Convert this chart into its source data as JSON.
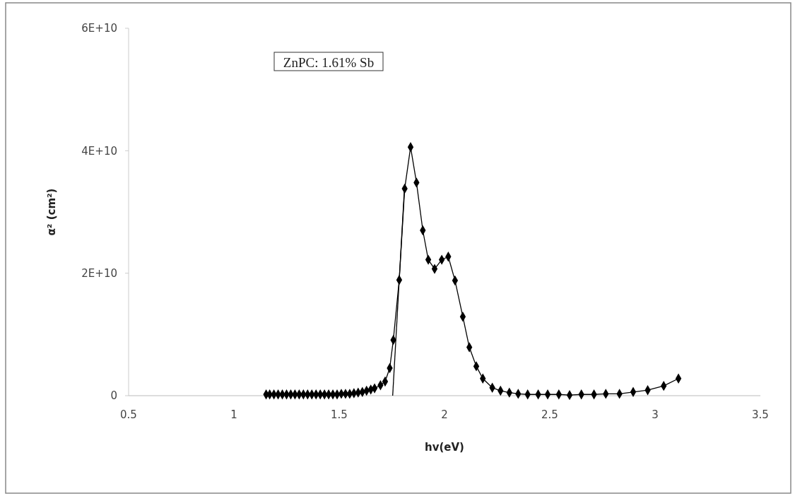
{
  "chart_data": {
    "type": "line",
    "xlabel": "hv(eV)",
    "ylabel": "α² (cm²)",
    "annotations": [
      "ZnPC: 1.61% Sb"
    ],
    "xlim": [
      0.5,
      3.5
    ],
    "xticks": [
      0.5,
      1,
      1.5,
      2,
      2.5,
      3,
      3.5
    ],
    "ylim": [
      0,
      60000000000
    ],
    "yticks": [
      {
        "value": 0,
        "label": "0"
      },
      {
        "value": 20000000000,
        "label": "2E+10"
      },
      {
        "value": 40000000000,
        "label": "4E+10"
      },
      {
        "value": 60000000000,
        "label": "6E+10"
      }
    ],
    "grid": false,
    "marker": "diamond",
    "line_style": "solid",
    "series": [
      {
        "color": "#000000",
        "x": [
          1.153,
          1.17,
          1.19,
          1.21,
          1.23,
          1.25,
          1.27,
          1.29,
          1.31,
          1.33,
          1.35,
          1.37,
          1.39,
          1.41,
          1.43,
          1.45,
          1.47,
          1.49,
          1.51,
          1.53,
          1.55,
          1.57,
          1.59,
          1.61,
          1.63,
          1.65,
          1.668,
          1.696,
          1.718,
          1.74,
          1.757,
          1.785,
          1.811,
          1.839,
          1.867,
          1.897,
          1.923,
          1.953,
          1.987,
          2.018,
          2.05,
          2.087,
          2.118,
          2.151,
          2.182,
          2.227,
          2.266,
          2.308,
          2.35,
          2.395,
          2.445,
          2.49,
          2.543,
          2.594,
          2.65,
          2.71,
          2.766,
          2.831,
          2.896,
          2.965,
          3.041,
          3.111
        ],
        "values": [
          200000000,
          200000000,
          200000000,
          200000000,
          200000000,
          200000000,
          200000000,
          200000000,
          200000000,
          200000000,
          200000000,
          200000000,
          200000000,
          200000000,
          200000000,
          200000000,
          200000000,
          200000000,
          300000000,
          300000000,
          300000000,
          400000000,
          500000000,
          600000000,
          800000000,
          1000000000,
          1200000000,
          1700000000,
          2300000000,
          4500000000,
          9100000000,
          18900000000,
          33800000000,
          40600000000,
          34800000000,
          27000000000,
          22200000000,
          20700000000,
          22200000000,
          22700000000,
          18800000000,
          12900000000,
          7900000000,
          4800000000,
          2800000000,
          1300000000,
          800000000,
          500000000,
          300000000,
          200000000,
          200000000,
          200000000,
          200000000,
          100000000,
          200000000,
          200000000,
          300000000,
          300000000,
          600000000,
          900000000,
          1600000000,
          2800000000
        ]
      },
      {
        "type": "line",
        "color": "#000000",
        "marker": "none",
        "x": [
          1.754,
          1.81
        ],
        "values": [
          0,
          34000000000
        ]
      }
    ]
  }
}
